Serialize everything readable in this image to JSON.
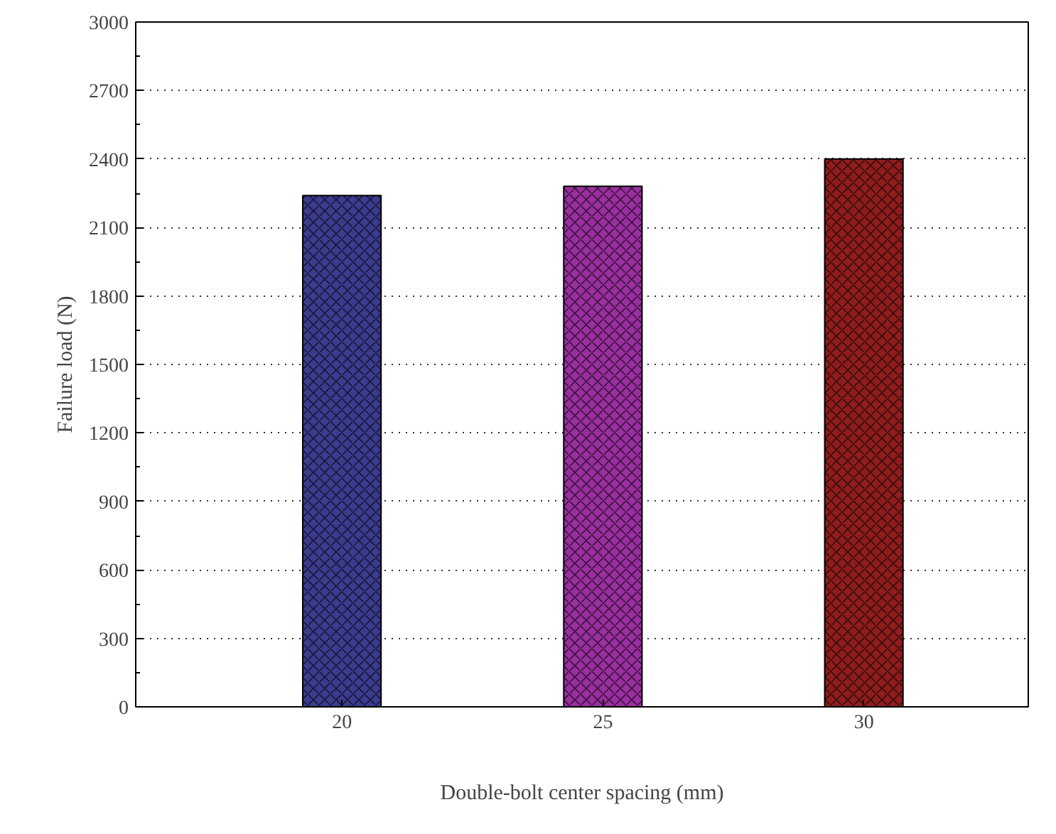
{
  "chart_data": {
    "type": "bar",
    "xlabel": "Double-bolt center spacing (mm)",
    "ylabel": "Failure load (N)",
    "categories": [
      "20",
      "25",
      "30"
    ],
    "values": [
      2240,
      2280,
      2400
    ],
    "colors": [
      "#3b3b8f",
      "#9a2fa0",
      "#8f1d1d"
    ],
    "ylim": [
      0,
      3000
    ],
    "yticks": [
      0,
      300,
      600,
      900,
      1200,
      1500,
      1800,
      2100,
      2400,
      2700,
      3000
    ],
    "grid": "y"
  }
}
